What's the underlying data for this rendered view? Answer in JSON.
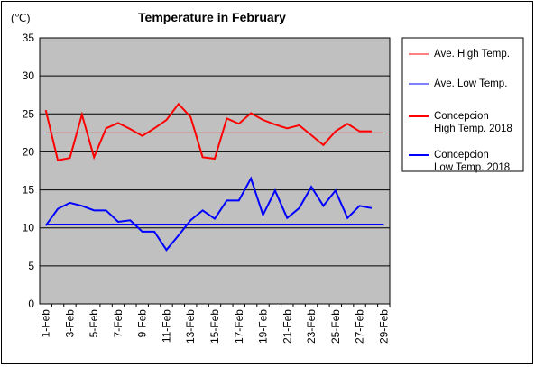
{
  "chart_data": {
    "type": "line",
    "title": "Temperature in February",
    "y_label": "(℃)",
    "categories": [
      "1-Feb",
      null,
      "3-Feb",
      null,
      "5-Feb",
      null,
      "7-Feb",
      null,
      "9-Feb",
      null,
      "11-Feb",
      null,
      "13-Feb",
      null,
      "15-Feb",
      null,
      "17-Feb",
      null,
      "19-Feb",
      null,
      "21-Feb",
      null,
      "23-Feb",
      null,
      "25-Feb",
      null,
      "27-Feb",
      null,
      "29-Feb"
    ],
    "series": [
      {
        "name": "Ave. High Temp.",
        "color": "#ff0000",
        "width": 1,
        "values": [
          22.5,
          22.5,
          22.5,
          22.5,
          22.5,
          22.5,
          22.5,
          22.5,
          22.5,
          22.5,
          22.5,
          22.5,
          22.5,
          22.5,
          22.5,
          22.5,
          22.5,
          22.5,
          22.5,
          22.5,
          22.5,
          22.5,
          22.5,
          22.5,
          22.5,
          22.5,
          22.5,
          22.5,
          22.5
        ]
      },
      {
        "name": "Ave. Low Temp.",
        "color": "#0000ff",
        "width": 1,
        "values": [
          10.5,
          10.5,
          10.5,
          10.5,
          10.5,
          10.5,
          10.5,
          10.5,
          10.5,
          10.5,
          10.5,
          10.5,
          10.5,
          10.5,
          10.5,
          10.5,
          10.5,
          10.5,
          10.5,
          10.5,
          10.5,
          10.5,
          10.5,
          10.5,
          10.5,
          10.5,
          10.5,
          10.5,
          10.5
        ]
      },
      {
        "name": "Concepcion\nHigh Temp. 2018",
        "color": "#ff0000",
        "width": 2,
        "values": [
          25.5,
          18.9,
          19.2,
          24.9,
          19.3,
          23.1,
          23.8,
          23.0,
          22.1,
          23.1,
          24.2,
          26.3,
          24.6,
          19.3,
          19.1,
          24.4,
          23.7,
          25.1,
          24.2,
          23.6,
          23.1,
          23.5,
          22.2,
          20.9,
          22.7,
          23.7,
          22.7,
          22.7,
          null
        ]
      },
      {
        "name": "Concepcion\nLow Temp. 2018",
        "color": "#0000ff",
        "width": 2,
        "values": [
          10.3,
          12.5,
          13.3,
          12.9,
          12.3,
          12.3,
          10.8,
          11.0,
          9.5,
          9.5,
          7.1,
          9.0,
          11.0,
          12.3,
          11.2,
          13.6,
          13.6,
          16.5,
          11.7,
          14.9,
          11.3,
          12.6,
          15.4,
          12.9,
          14.9,
          11.3,
          12.9,
          12.6,
          null
        ]
      }
    ],
    "ylim": [
      0,
      35
    ],
    "yticks": [
      0,
      5,
      10,
      15,
      20,
      25,
      30,
      35
    ],
    "grid": true,
    "plot_background": "#c0c0c0"
  }
}
